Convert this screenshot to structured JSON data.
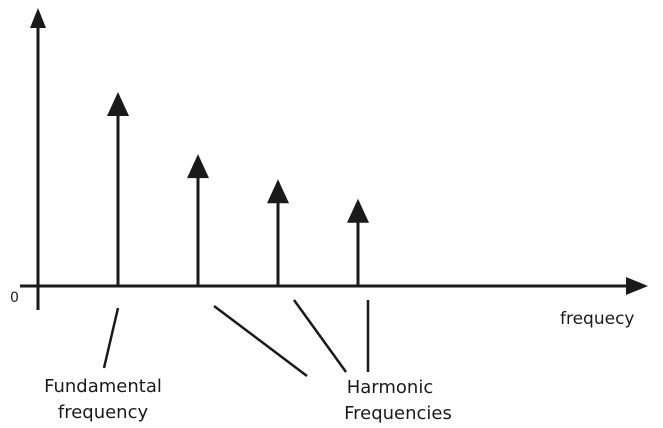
{
  "diagram": {
    "origin_label": "0",
    "x_axis_label": "frequecy",
    "fundamental_label": [
      "Fundamental",
      "frequency"
    ],
    "harmonic_label": [
      "Harmonic",
      "Frequencies"
    ],
    "spectral_lines": [
      {
        "role": "fundamental",
        "relative_amplitude": 1.0
      },
      {
        "role": "harmonic",
        "relative_amplitude": 0.68
      },
      {
        "role": "harmonic",
        "relative_amplitude": 0.55
      },
      {
        "role": "harmonic",
        "relative_amplitude": 0.45
      }
    ],
    "line_color": "#1a1a1a"
  }
}
